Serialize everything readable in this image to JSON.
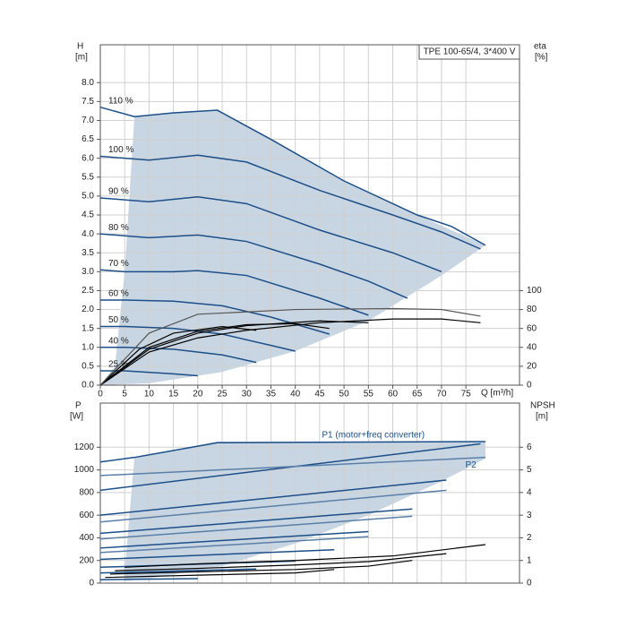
{
  "chart_data": [
    {
      "type": "line",
      "title": "TPE 100-65/4, 3*400 V",
      "ylabel": "H",
      "yunit": "[m]",
      "y2label": "eta",
      "y2unit": "[%]",
      "xlabel": "Q [m³/h]",
      "xlim": [
        0,
        86
      ],
      "ylim": [
        0,
        9
      ],
      "y2lim": [
        0,
        360
      ],
      "grid": true,
      "xticks": [
        0,
        5,
        10,
        15,
        20,
        25,
        30,
        35,
        40,
        45,
        50,
        55,
        60,
        65,
        70,
        75
      ],
      "yticks": [
        {
          "value": 0,
          "label": "0.0"
        },
        {
          "value": 0.5,
          "label": "0.5"
        },
        {
          "value": 1,
          "label": "1.0"
        },
        {
          "value": 1.5,
          "label": "1.5"
        },
        {
          "value": 2,
          "label": "2.0"
        },
        {
          "value": 2.5,
          "label": "2.5"
        },
        {
          "value": 3,
          "label": "3.0"
        },
        {
          "value": 3.5,
          "label": "3.5"
        },
        {
          "value": 4,
          "label": "4.0"
        },
        {
          "value": 4.5,
          "label": "4.5"
        },
        {
          "value": 5,
          "label": "5.0"
        },
        {
          "value": 5.5,
          "label": "5.5"
        },
        {
          "value": 6,
          "label": "6.0"
        },
        {
          "value": 6.5,
          "label": "6.5"
        },
        {
          "value": 7,
          "label": "7.0"
        },
        {
          "value": 7.5,
          "label": "7.5"
        },
        {
          "value": 8,
          "label": "8.0"
        }
      ],
      "y2ticks": [
        0,
        20,
        40,
        60,
        80,
        100
      ],
      "area": {
        "color": "#c8d5e2",
        "x": [
          0,
          3,
          5,
          7,
          15,
          24,
          35,
          50,
          65,
          79,
          70,
          55,
          40,
          25,
          10,
          0
        ],
        "y": [
          0,
          0.5,
          3,
          7.1,
          7.2,
          7.27,
          6.5,
          5.4,
          4.5,
          3.7,
          2.9,
          1.7,
          0.9,
          0.35,
          0.05,
          0
        ]
      },
      "series": [
        {
          "name": "110 %",
          "color": "#1c4f8a",
          "x": [
            0,
            7,
            15,
            24,
            35,
            50,
            65,
            72,
            79
          ],
          "values": [
            7.35,
            7.1,
            7.2,
            7.27,
            6.5,
            5.4,
            4.5,
            4.2,
            3.7
          ]
        },
        {
          "name": "100 %",
          "color": "#1c4f8a",
          "x": [
            0,
            5,
            10,
            20,
            30,
            45,
            60,
            70,
            78
          ],
          "values": [
            6.05,
            6.0,
            5.95,
            6.08,
            5.9,
            5.15,
            4.5,
            4.05,
            3.6
          ]
        },
        {
          "name": "90 %",
          "color": "#1c4f8a",
          "x": [
            0,
            5,
            10,
            20,
            30,
            45,
            60,
            70
          ],
          "values": [
            4.95,
            4.9,
            4.85,
            4.98,
            4.8,
            4.1,
            3.5,
            3.0
          ]
        },
        {
          "name": "80 %",
          "color": "#1c4f8a",
          "x": [
            0,
            5,
            10,
            20,
            30,
            45,
            55,
            63
          ],
          "values": [
            4.0,
            3.95,
            3.9,
            3.97,
            3.8,
            3.2,
            2.75,
            2.3
          ]
        },
        {
          "name": "70 %",
          "color": "#1c4f8a",
          "x": [
            0,
            5,
            15,
            20,
            30,
            45,
            55
          ],
          "values": [
            3.05,
            3.0,
            3.0,
            3.03,
            2.9,
            2.3,
            1.85
          ]
        },
        {
          "name": "60 %",
          "color": "#1c4f8a",
          "x": [
            0,
            5,
            15,
            25,
            35,
            47
          ],
          "values": [
            2.25,
            2.25,
            2.22,
            2.1,
            1.8,
            1.35
          ]
        },
        {
          "name": "50 %",
          "color": "#1c4f8a",
          "x": [
            0,
            5,
            15,
            25,
            35,
            40
          ],
          "values": [
            1.55,
            1.55,
            1.5,
            1.35,
            1.05,
            0.9
          ]
        },
        {
          "name": "40 %",
          "color": "#1c4f8a",
          "x": [
            0,
            5,
            15,
            25,
            32
          ],
          "values": [
            1.0,
            1.0,
            0.95,
            0.8,
            0.6
          ]
        },
        {
          "name": "25 %",
          "color": "#1c4f8a",
          "x": [
            0,
            5,
            15,
            20
          ],
          "values": [
            0.38,
            0.38,
            0.3,
            0.25
          ]
        },
        {
          "axis": "y2",
          "color": "#000000",
          "x": [
            0,
            10,
            20,
            30,
            45,
            60,
            70,
            78
          ],
          "values": [
            0,
            35,
            50,
            58,
            66,
            70,
            70,
            66
          ]
        },
        {
          "axis": "y2",
          "color": "#000000",
          "x": [
            0,
            10,
            20,
            30,
            45,
            55
          ],
          "values": [
            0,
            38,
            55,
            63,
            68,
            66
          ]
        },
        {
          "axis": "y2",
          "color": "#000000",
          "x": [
            0,
            10,
            20,
            30,
            40,
            47
          ],
          "values": [
            0,
            40,
            57,
            64,
            65,
            60
          ]
        },
        {
          "axis": "y2",
          "color": "#000000",
          "x": [
            0,
            8,
            15,
            25,
            32
          ],
          "values": [
            0,
            38,
            55,
            62,
            58
          ]
        },
        {
          "axis": "y2",
          "color": "#555555",
          "x": [
            0,
            10,
            20,
            40,
            60,
            70,
            78
          ],
          "values": [
            0,
            55,
            75,
            80,
            81,
            80,
            73
          ]
        }
      ]
    },
    {
      "type": "line",
      "ylabel": "P",
      "yunit": "[W]",
      "y2label": "NPSH",
      "y2unit": "[m]",
      "xlim": [
        0,
        86
      ],
      "ylim": [
        0,
        1590
      ],
      "y2lim": [
        0,
        7.95
      ],
      "grid": true,
      "yticks": [
        0,
        200,
        400,
        600,
        800,
        1000,
        1200
      ],
      "y2ticks": [
        0,
        1,
        2,
        3,
        4,
        5,
        6
      ],
      "area": {
        "color": "#c8d5e2",
        "x": [
          5,
          7,
          24,
          79,
          79,
          70,
          55,
          40,
          25,
          10,
          5
        ],
        "y": [
          100,
          1110,
          1250,
          1250,
          1100,
          900,
          600,
          350,
          150,
          40,
          20
        ]
      },
      "annotations": [
        {
          "text": "P1 (motor+freq converter)",
          "x": 56,
          "y": 1305
        },
        {
          "text": "P2",
          "x": 76,
          "y": 1040
        }
      ],
      "series": [
        {
          "color": "#1c4f8a",
          "x": [
            0,
            7,
            24,
            79
          ],
          "values": [
            1070,
            1110,
            1240,
            1250
          ]
        },
        {
          "color": "#1c4f8a",
          "x": [
            0,
            78
          ],
          "values": [
            820,
            1230
          ]
        },
        {
          "color": "#1c4f8a",
          "x": [
            0,
            71
          ],
          "values": [
            600,
            910
          ]
        },
        {
          "color": "#1c4f8a",
          "x": [
            0,
            64
          ],
          "values": [
            440,
            655
          ]
        },
        {
          "color": "#1c4f8a",
          "x": [
            0,
            55
          ],
          "values": [
            310,
            455
          ]
        },
        {
          "color": "#1c4f8a",
          "x": [
            0,
            48
          ],
          "values": [
            210,
            295
          ]
        },
        {
          "color": "#1c4f8a",
          "x": [
            0,
            40
          ],
          "values": [
            140,
            195
          ]
        },
        {
          "color": "#1c4f8a",
          "x": [
            0,
            32
          ],
          "values": [
            90,
            125
          ]
        },
        {
          "color": "#1c4f8a",
          "x": [
            0,
            20
          ],
          "values": [
            30,
            40
          ]
        },
        {
          "color": "#5a7fa8",
          "x": [
            0,
            79
          ],
          "values": [
            950,
            1110
          ]
        },
        {
          "color": "#5a7fa8",
          "x": [
            0,
            71
          ],
          "values": [
            540,
            820
          ]
        },
        {
          "color": "#5a7fa8",
          "x": [
            0,
            64
          ],
          "values": [
            390,
            590
          ]
        },
        {
          "color": "#5a7fa8",
          "x": [
            0,
            55
          ],
          "values": [
            270,
            410
          ]
        },
        {
          "axis": "y2",
          "color": "#000000",
          "x": [
            5,
            20,
            40,
            60,
            79
          ],
          "values": [
            0.7,
            0.85,
            1.0,
            1.2,
            1.7
          ]
        },
        {
          "axis": "y2",
          "color": "#000000",
          "x": [
            3,
            20,
            40,
            55,
            71
          ],
          "values": [
            0.55,
            0.65,
            0.8,
            0.95,
            1.3
          ]
        },
        {
          "axis": "y2",
          "color": "#000000",
          "x": [
            2,
            20,
            40,
            55,
            64
          ],
          "values": [
            0.4,
            0.5,
            0.6,
            0.75,
            1.0
          ]
        },
        {
          "axis": "y2",
          "color": "#000000",
          "x": [
            1,
            20,
            40,
            48
          ],
          "values": [
            0.25,
            0.35,
            0.45,
            0.6
          ]
        }
      ]
    }
  ]
}
